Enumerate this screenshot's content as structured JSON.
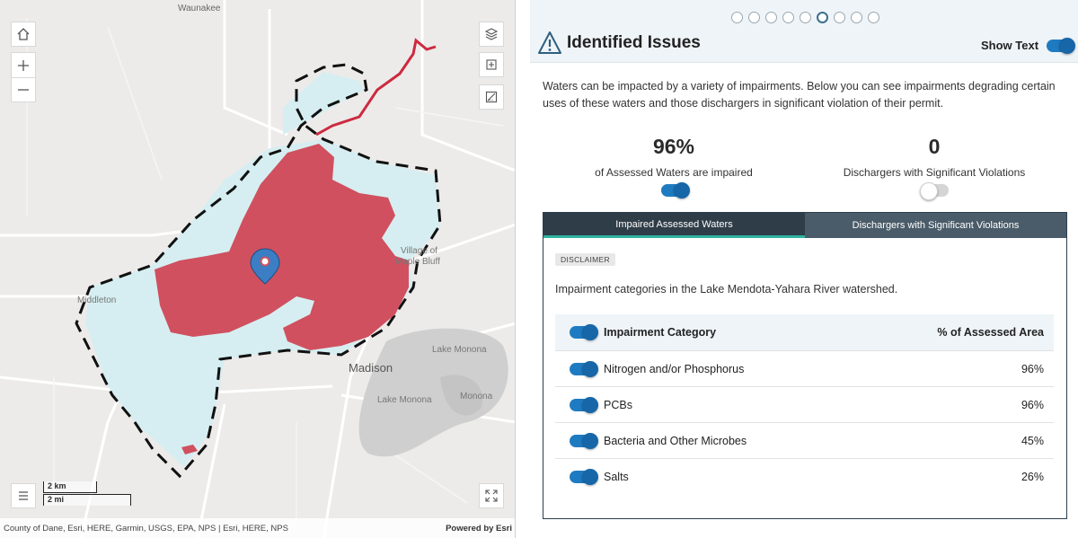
{
  "map": {
    "labels": {
      "top_town": "Waunakee",
      "village": "Village of",
      "village2": "Maple Bluff",
      "middleton": "Middleton",
      "madison": "Madison",
      "lake_monona_1": "Lake Monona",
      "lake_monona_2": "Lake Monona",
      "monona": "Monona"
    },
    "scale": {
      "km": "2 km",
      "mi": "2 mi"
    },
    "attribution": "County of Dane, Esri, HERE, Garmin, USGS, EPA, NPS | Esri, HERE, NPS",
    "powered_by": "Powered by Esri",
    "colors": {
      "impaired": "#d0505f",
      "watershed": "#d6eef1",
      "river": "#cc2a3f"
    }
  },
  "panel": {
    "pager": {
      "total": 9,
      "active": 6
    },
    "title": "Identified Issues",
    "show_text_label": "Show Text",
    "show_text_on": true,
    "intro": "Waters can be impacted by a variety of impairments.  Below you can see impairments degrading certain uses of these waters and those dischargers in significant violation of their permit.",
    "stats": [
      {
        "value": "96%",
        "caption": "of Assessed Waters are impaired",
        "toggle_on": true
      },
      {
        "value": "0",
        "caption": "Dischargers with Significant Violations",
        "toggle_on": false
      }
    ],
    "tabs": [
      {
        "label": "Impaired Assessed Waters",
        "active": true
      },
      {
        "label": "Dischargers with Significant Violations",
        "active": false
      }
    ],
    "disclaimer": "DISCLAIMER",
    "description": "Impairment categories in the Lake Mendota-Yahara River watershed.",
    "table": {
      "header": {
        "category": "Impairment Category",
        "area": "% of Assessed Area"
      },
      "rows": [
        {
          "category": "Nitrogen and/or Phosphorus",
          "area": "96%",
          "area_value": 96
        },
        {
          "category": "PCBs",
          "area": "96%",
          "area_value": 96
        },
        {
          "category": "Bacteria and Other Microbes",
          "area": "45%",
          "area_value": 45
        },
        {
          "category": "Salts",
          "area": "26%",
          "area_value": 26
        }
      ]
    }
  }
}
